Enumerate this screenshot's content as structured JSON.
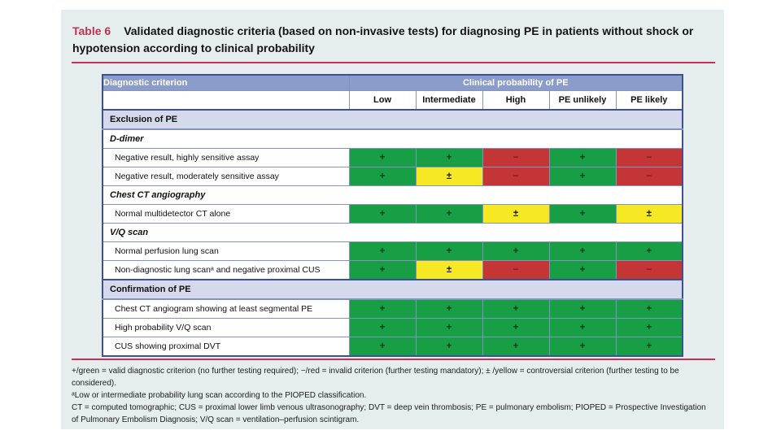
{
  "title": {
    "label": "Table 6",
    "text": "Validated diagnostic criteria (based on non-invasive tests) for diagnosing PE in patients without shock or hypotension according to clinical probability"
  },
  "table": {
    "criterion_header": "Diagnostic criterion",
    "group_header": "Clinical probability of PE",
    "columns": [
      "Low",
      "Intermediate",
      "High",
      "PE unlikely",
      "PE likely"
    ],
    "symbols": {
      "plus": "+",
      "minus": "−",
      "pm": "±"
    },
    "rows": [
      {
        "type": "section",
        "label": "Exclusion of PE"
      },
      {
        "type": "subsection",
        "label": "D-dimer"
      },
      {
        "type": "criterion",
        "label": "Negative result, highly sensitive assay",
        "cells": [
          "plus",
          "plus",
          "minus",
          "plus",
          "minus"
        ]
      },
      {
        "type": "criterion",
        "label": "Negative result, moderately sensitive assay",
        "cells": [
          "plus",
          "pm",
          "minus",
          "plus",
          "minus"
        ]
      },
      {
        "type": "subsection",
        "label": "Chest CT angiography"
      },
      {
        "type": "criterion",
        "label": "Normal multidetector CT alone",
        "cells": [
          "plus",
          "plus",
          "pm",
          "plus",
          "pm"
        ]
      },
      {
        "type": "subsection",
        "label": "V/Q scan"
      },
      {
        "type": "criterion",
        "label": "Normal perfusion lung scan",
        "cells": [
          "plus",
          "plus",
          "plus",
          "plus",
          "plus"
        ]
      },
      {
        "type": "criterion",
        "label": "Non-diagnostic lung scanᵃ and negative proximal CUS",
        "cells": [
          "plus",
          "pm",
          "minus",
          "plus",
          "minus"
        ]
      },
      {
        "type": "section",
        "label": "Confirmation of PE"
      },
      {
        "type": "criterion",
        "label": "Chest CT angiogram showing at least segmental PE",
        "cells": [
          "plus",
          "plus",
          "plus",
          "plus",
          "plus"
        ]
      },
      {
        "type": "criterion",
        "label": "High probability V/Q scan",
        "cells": [
          "plus",
          "plus",
          "plus",
          "plus",
          "plus"
        ]
      },
      {
        "type": "criterion",
        "label": "CUS showing proximal DVT",
        "cells": [
          "plus",
          "plus",
          "plus",
          "plus",
          "plus"
        ]
      }
    ]
  },
  "footnotes": {
    "legend": "+/green = valid diagnostic criterion (no further testing required); −/red = invalid criterion (further testing mandatory); ± /yellow = controversial criterion (further testing to be considered).",
    "note_a": "ᵃLow or intermediate probability lung scan according to the PIOPED classification.",
    "abbreviations": "CT = computed tomographic; CUS = proximal lower limb venous ultrasonography; DVT = deep vein thrombosis; PE = pulmonary embolism; PIOPED = Prospective Investigation of Pulmonary Embolism Diagnosis; V/Q scan = ventilation–perfusion scintigram."
  },
  "colors": {
    "valid_green": "#189e44",
    "invalid_red": "#c43535",
    "controversial_yellow": "#f6e822",
    "header_blue": "#8b9cca",
    "section_lavender": "#d4daeb",
    "accent_red": "#c2314e"
  }
}
